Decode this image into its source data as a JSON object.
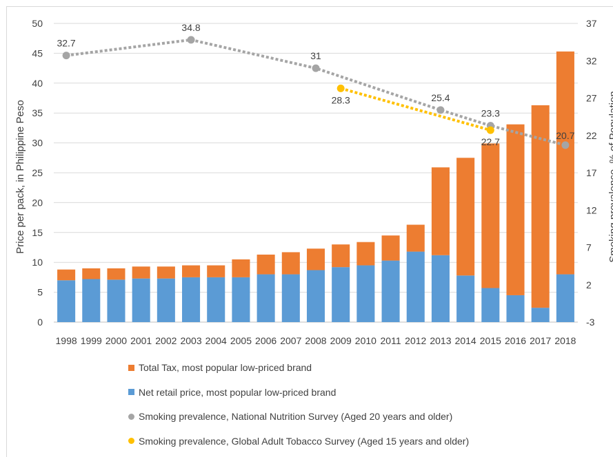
{
  "chart_data": {
    "type": "bar",
    "stacked": true,
    "categories": [
      "1998",
      "1999",
      "2000",
      "2001",
      "2002",
      "2003",
      "2004",
      "2005",
      "2006",
      "2007",
      "2008",
      "2009",
      "2010",
      "2011",
      "2012",
      "2013",
      "2014",
      "2015",
      "2016",
      "2017",
      "2018"
    ],
    "ylabel": "Price per pack, in Philippine Peso",
    "y2label": "Smoking prevalence, % of Population",
    "ylim": [
      0,
      50
    ],
    "yticks": [
      "0",
      "5",
      "10",
      "15",
      "20",
      "25",
      "30",
      "35",
      "40",
      "45",
      "50"
    ],
    "y2lim": [
      -3,
      37
    ],
    "y2ticks": [
      "-3",
      "2",
      "7",
      "12",
      "17",
      "22",
      "27",
      "32",
      "37"
    ],
    "grid": true,
    "legend_position": "bottom",
    "bar_series": [
      {
        "name": "Net retail price, most popular low-priced brand",
        "color": "#5b9bd5",
        "values": [
          7.0,
          7.2,
          7.1,
          7.3,
          7.3,
          7.5,
          7.5,
          7.5,
          8.0,
          8.0,
          8.7,
          9.2,
          9.5,
          10.3,
          11.8,
          11.2,
          7.8,
          5.7,
          4.5,
          2.4,
          8.0
        ]
      },
      {
        "name": "Total Tax, most popular low-priced brand",
        "color": "#ed7d31",
        "values": [
          1.8,
          1.8,
          1.9,
          2.0,
          2.0,
          2.0,
          2.0,
          3.0,
          3.3,
          3.7,
          3.6,
          3.8,
          3.9,
          4.2,
          4.5,
          14.7,
          19.7,
          24.2,
          28.6,
          33.9,
          37.3
        ]
      }
    ],
    "line_series": [
      {
        "name": "Smoking prevalence, National Nutrition Survey (Aged 20 years and older)",
        "color": "#a5a5a5",
        "x": [
          "1998",
          "2003",
          "2008",
          "2013",
          "2015",
          "2018"
        ],
        "values": [
          32.7,
          34.8,
          31,
          25.4,
          23.3,
          20.7
        ],
        "labels": [
          "32.7",
          "34.8",
          "31",
          "25.4",
          "23.3",
          "20.7"
        ]
      },
      {
        "name": "Smoking prevalence, Global Adult Tobacco Survey (Aged 15 years and older)",
        "color": "#ffc000",
        "x": [
          "2009",
          "2015"
        ],
        "values": [
          28.3,
          22.7
        ],
        "labels": [
          "28.3",
          "22.7"
        ]
      }
    ],
    "legend": [
      {
        "label": "Total Tax, most popular low-priced brand",
        "color": "#ed7d31",
        "shape": "square"
      },
      {
        "label": "Net retail price, most popular low-priced brand",
        "color": "#5b9bd5",
        "shape": "square"
      },
      {
        "label": "Smoking prevalence, National Nutrition Survey (Aged 20 years and older)",
        "color": "#a5a5a5",
        "shape": "circle"
      },
      {
        "label": "Smoking prevalence, Global Adult Tobacco Survey (Aged 15 years and older)",
        "color": "#ffc000",
        "shape": "circle"
      }
    ]
  }
}
